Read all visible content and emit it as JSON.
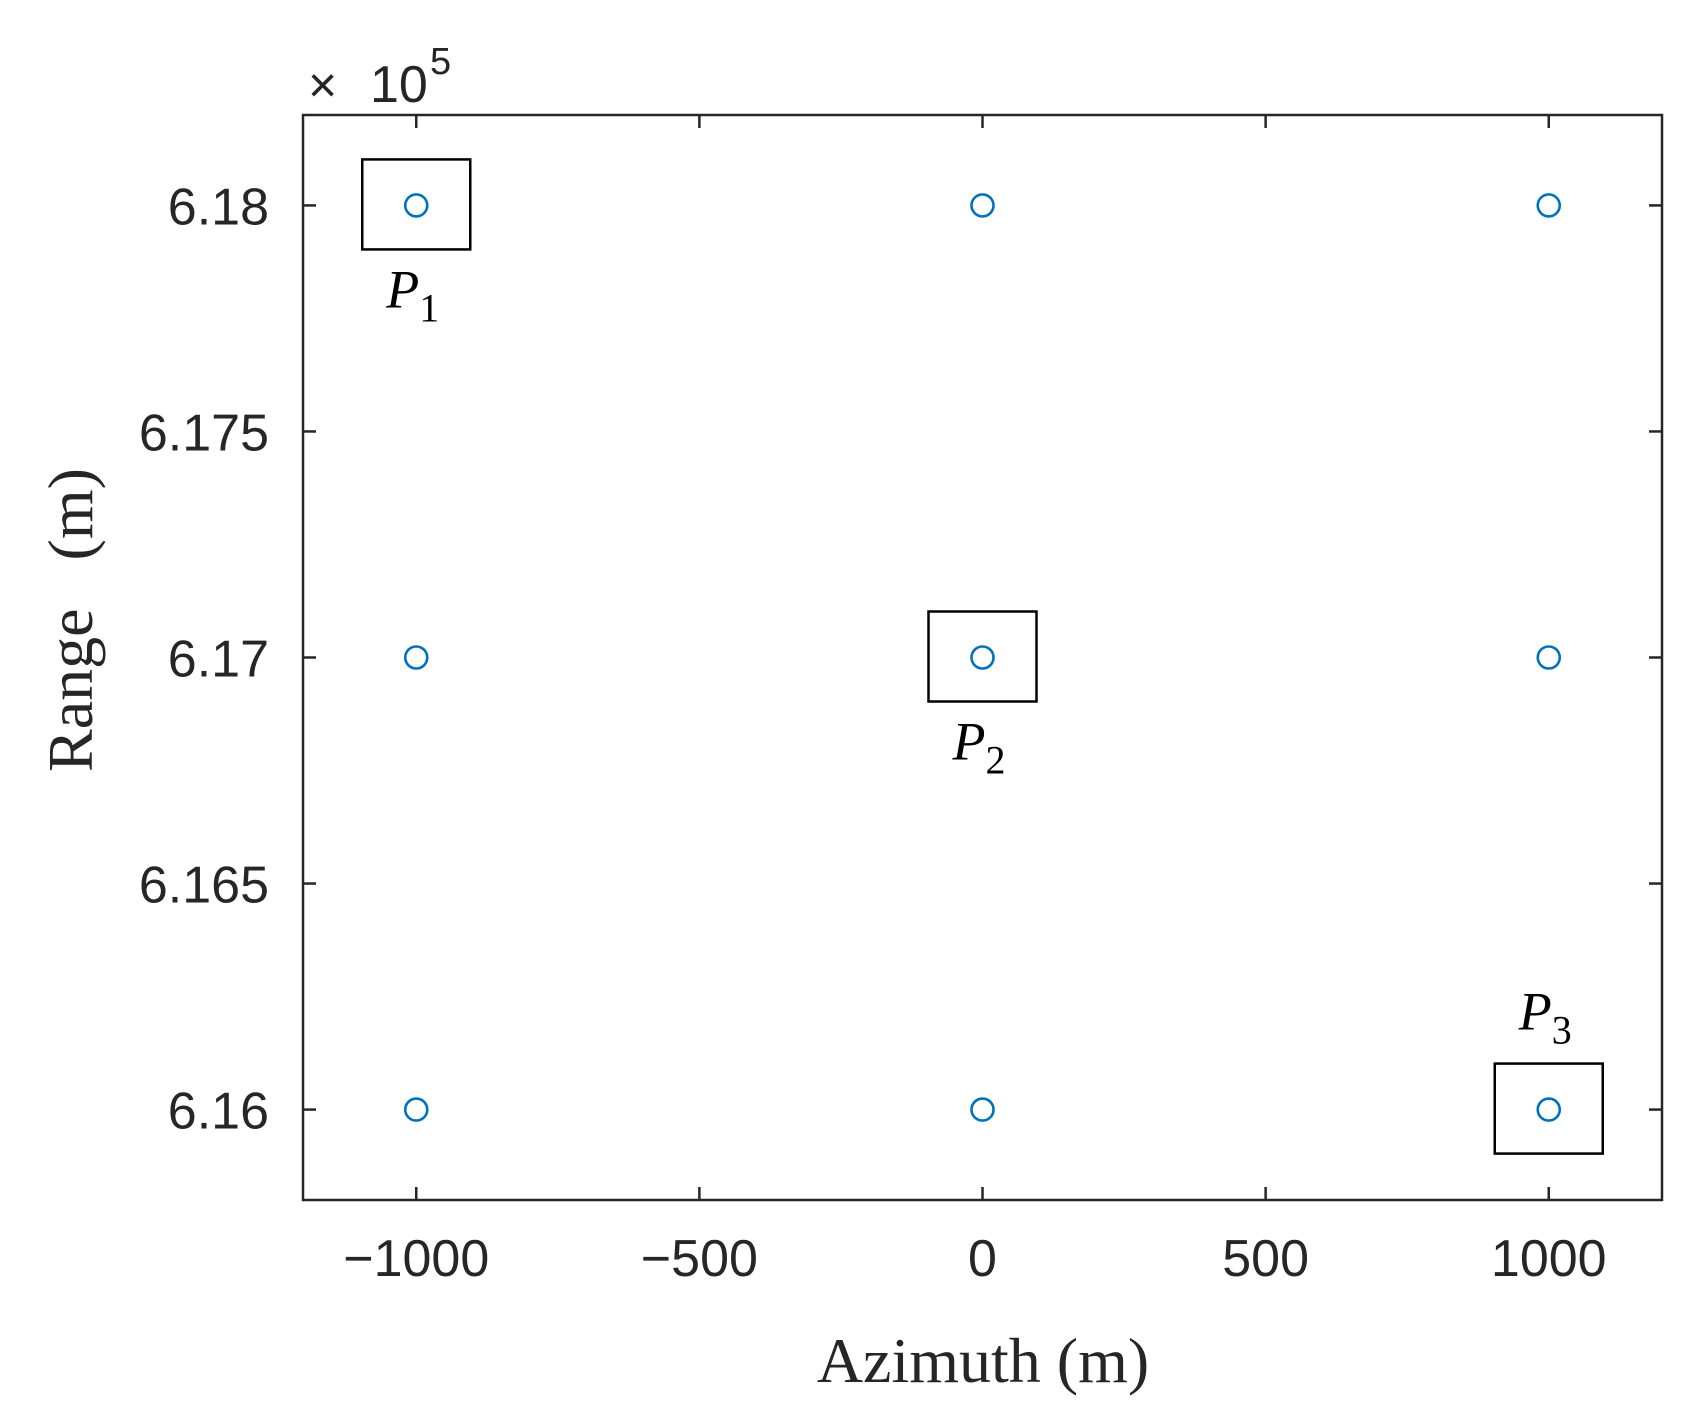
{
  "chart_data": {
    "type": "scatter",
    "xlabel": "Azimuth (m)",
    "ylabel": "Range   (m)",
    "y_multiplier": {
      "base": "10",
      "exponent": "5"
    },
    "xlim": [
      -1200,
      1200
    ],
    "ylim": [
      615.8,
      618.2
    ],
    "xticks": [
      -1000,
      -500,
      0,
      500,
      1000
    ],
    "xtick_labels": [
      "−1000",
      "−500",
      "0",
      "500",
      "1000"
    ],
    "yticks": [
      616,
      616.5,
      617,
      617.5,
      618
    ],
    "ytick_labels": [
      "6.16",
      "6.165",
      "6.17",
      "6.175",
      "6.18"
    ],
    "grid": false,
    "marker": "circle",
    "marker_color": "#0072BD",
    "points": [
      {
        "x": -1000,
        "y": 618
      },
      {
        "x": 0,
        "y": 618
      },
      {
        "x": 1000,
        "y": 618
      },
      {
        "x": -1000,
        "y": 617
      },
      {
        "x": 0,
        "y": 617
      },
      {
        "x": 1000,
        "y": 617
      },
      {
        "x": -1000,
        "y": 616
      },
      {
        "x": 0,
        "y": 616
      },
      {
        "x": 1000,
        "y": 616
      }
    ],
    "annotations": [
      {
        "letter": "P",
        "sub": "1",
        "x": -1000,
        "y": 618,
        "label_side": "below"
      },
      {
        "letter": "P",
        "sub": "2",
        "x": 0,
        "y": 617,
        "label_side": "below"
      },
      {
        "letter": "P",
        "sub": "3",
        "x": 1000,
        "y": 616,
        "label_side": "above"
      }
    ]
  }
}
